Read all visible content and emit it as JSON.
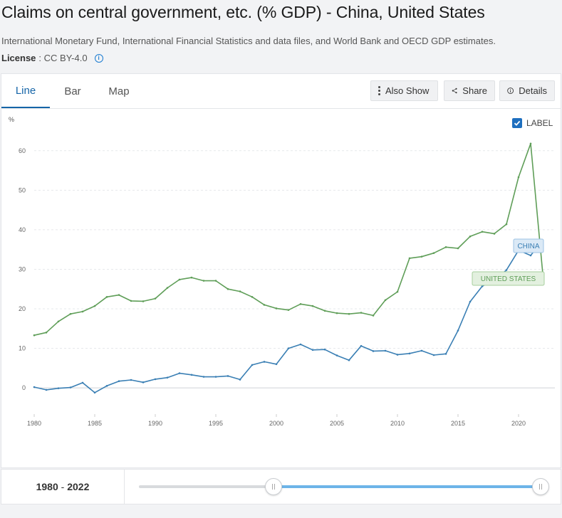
{
  "header": {
    "title": "Claims on central government, etc. (% GDP) - China, United States",
    "source": "International Monetary Fund, International Financial Statistics and data files, and World Bank and OECD GDP estimates.",
    "license_label": "License",
    "license_value": ": CC BY-4.0"
  },
  "tabs": [
    {
      "label": "Line"
    },
    {
      "label": "Bar"
    },
    {
      "label": "Map"
    }
  ],
  "toolbar": {
    "also_show": "Also Show",
    "share": "Share",
    "details": "Details"
  },
  "label_toggle": {
    "label": "LABEL",
    "checked": true
  },
  "footer": {
    "range_start": "1980",
    "range_sep": " - ",
    "range_end": "2022",
    "slider_start_fraction": 0.3289,
    "slider_end_fraction": 1.0
  },
  "chart_data": {
    "type": "line",
    "ylabel": "%",
    "ylim": [
      -7,
      65
    ],
    "xlim": [
      1980,
      2023
    ],
    "yticks": [
      0,
      10,
      20,
      30,
      40,
      50,
      60
    ],
    "xticks": [
      1980,
      1985,
      1990,
      1995,
      2000,
      2005,
      2010,
      2015,
      2020
    ],
    "grid": true,
    "x": [
      1980,
      1981,
      1982,
      1983,
      1984,
      1985,
      1986,
      1987,
      1988,
      1989,
      1990,
      1991,
      1992,
      1993,
      1994,
      1995,
      1996,
      1997,
      1998,
      1999,
      2000,
      2001,
      2002,
      2003,
      2004,
      2005,
      2006,
      2007,
      2008,
      2009,
      2010,
      2011,
      2012,
      2013,
      2014,
      2015,
      2016,
      2017,
      2018,
      2019,
      2020,
      2021,
      2022
    ],
    "series": [
      {
        "name": "CHINA",
        "color": "#3a7fb4",
        "values": [
          0.2,
          -0.5,
          -0.1,
          0.1,
          1.3,
          -1.2,
          0.5,
          1.7,
          2.0,
          1.4,
          2.2,
          2.6,
          3.7,
          3.3,
          2.8,
          2.8,
          3.0,
          2.1,
          5.8,
          6.6,
          6.0,
          10.0,
          11.0,
          9.6,
          9.7,
          8.2,
          7.0,
          10.6,
          9.3,
          9.4,
          8.4,
          8.7,
          9.4,
          8.3,
          8.6,
          14.5,
          21.8,
          25.7,
          27.3,
          29.8,
          34.8,
          33.5,
          37.3
        ]
      },
      {
        "name": "UNITED STATES",
        "color": "#5f9e58",
        "values": [
          13.3,
          14.0,
          16.8,
          18.7,
          19.3,
          20.7,
          23.0,
          23.5,
          22.0,
          21.9,
          22.6,
          25.3,
          27.4,
          27.9,
          27.1,
          27.1,
          25.0,
          24.4,
          23.0,
          21.0,
          20.1,
          19.7,
          21.2,
          20.7,
          19.5,
          18.9,
          18.7,
          19.0,
          18.3,
          22.2,
          24.3,
          32.8,
          33.2,
          34.1,
          35.6,
          35.3,
          38.3,
          39.5,
          39.0,
          41.4,
          53.3,
          61.8,
          28.9
        ]
      }
    ]
  }
}
